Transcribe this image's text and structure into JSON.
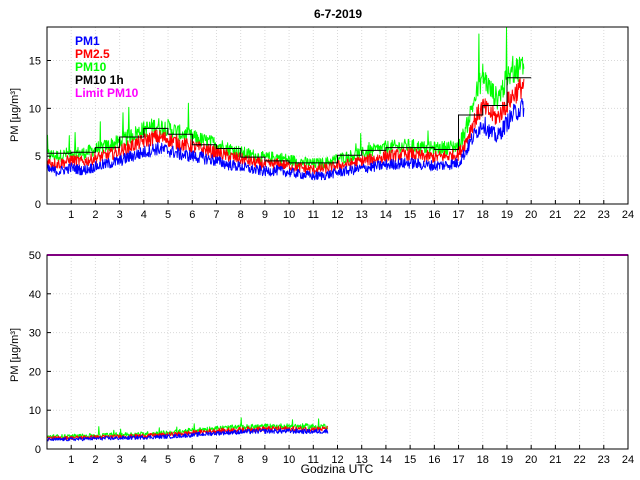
{
  "chart_data": [
    {
      "type": "line",
      "title": "6-7-2019",
      "ylabel": "PM [µg/m³]",
      "xlabel": "",
      "xlim": [
        0,
        24
      ],
      "ylim": [
        0,
        18.5
      ],
      "x_ticks": [
        "1",
        "2",
        "3",
        "4",
        "5",
        "6",
        "7",
        "8",
        "9",
        "10",
        "11",
        "12",
        "13",
        "14",
        "15",
        "16",
        "17",
        "18",
        "19",
        "20",
        "21",
        "22",
        "23",
        "24"
      ],
      "y_ticks": [
        "0",
        "5",
        "10",
        "15"
      ],
      "grid": true,
      "legend_position": "top-left",
      "series": [
        {
          "name": "PM1",
          "color": "#0000ff",
          "x": [
            0,
            0.5,
            1,
            1.5,
            2,
            2.5,
            3,
            3.5,
            4,
            4.5,
            5,
            5.5,
            6,
            6.5,
            7,
            7.5,
            8,
            8.5,
            9,
            9.5,
            10,
            10.5,
            11,
            11.5,
            12,
            12.5,
            13,
            13.5,
            14,
            14.5,
            15,
            15.5,
            16,
            16.5,
            17,
            17.3,
            17.6,
            18,
            18.3,
            18.6,
            19,
            19.3,
            19.7
          ],
          "y": [
            3.6,
            3.4,
            3.8,
            3.5,
            3.9,
            4.2,
            4.5,
            5.0,
            5.4,
            5.8,
            5.6,
            5.2,
            5.0,
            4.8,
            4.5,
            4.1,
            3.9,
            3.6,
            3.4,
            3.5,
            3.3,
            3.1,
            2.9,
            3.0,
            3.3,
            3.5,
            3.7,
            3.9,
            4.1,
            4.2,
            4.3,
            4.1,
            4.0,
            4.1,
            4.3,
            5.5,
            7.0,
            8.5,
            7.5,
            7.0,
            8.5,
            9.5,
            10.2
          ]
        },
        {
          "name": "PM2.5",
          "color": "#ff0000",
          "x": [
            0,
            0.5,
            1,
            1.5,
            2,
            2.5,
            3,
            3.5,
            4,
            4.5,
            5,
            5.5,
            6,
            6.5,
            7,
            7.5,
            8,
            8.5,
            9,
            9.5,
            10,
            10.5,
            11,
            11.5,
            12,
            12.5,
            13,
            13.5,
            14,
            14.5,
            15,
            15.5,
            16,
            16.5,
            17,
            17.3,
            17.6,
            18,
            18.3,
            18.6,
            19,
            19.3,
            19.7
          ],
          "y": [
            4.4,
            4.2,
            4.6,
            4.4,
            4.8,
            5.1,
            5.5,
            6.1,
            6.6,
            7.0,
            6.8,
            6.3,
            6.0,
            5.7,
            5.4,
            5.0,
            4.7,
            4.4,
            4.1,
            4.2,
            4.0,
            3.8,
            3.6,
            3.7,
            4.0,
            4.2,
            4.5,
            4.7,
            5.0,
            5.1,
            5.2,
            5.0,
            4.9,
            5.0,
            5.2,
            6.5,
            8.5,
            10.2,
            9.5,
            9.0,
            10.5,
            11.5,
            12.5
          ]
        },
        {
          "name": "PM10",
          "color": "#00ff00",
          "x": [
            0,
            0.5,
            1,
            1.5,
            2,
            2.5,
            3,
            3.5,
            4,
            4.5,
            5,
            5.5,
            6,
            6.5,
            7,
            7.5,
            8,
            8.5,
            9,
            9.5,
            10,
            10.5,
            11,
            11.5,
            12,
            12.5,
            13,
            13.5,
            14,
            14.5,
            15,
            15.5,
            16,
            16.5,
            17,
            17.3,
            17.6,
            18,
            18.3,
            18.6,
            19,
            19.3,
            19.7
          ],
          "y": [
            5.2,
            5.0,
            5.4,
            5.3,
            5.7,
            6.1,
            6.5,
            7.2,
            7.8,
            8.2,
            8.0,
            7.4,
            7.0,
            6.6,
            6.3,
            5.8,
            5.4,
            5.1,
            4.8,
            4.9,
            4.6,
            4.4,
            4.2,
            4.3,
            4.7,
            5.0,
            5.3,
            5.6,
            5.9,
            6.0,
            6.1,
            5.9,
            5.8,
            5.9,
            6.1,
            7.8,
            10.5,
            13.5,
            12.0,
            11.0,
            13.0,
            14.0,
            14.5
          ]
        },
        {
          "name": "PM10 1h",
          "color": "#000000",
          "step": true,
          "x": [
            0,
            1,
            2,
            3,
            4,
            5,
            6,
            7,
            8,
            9,
            10,
            11,
            12,
            13,
            14,
            15,
            16,
            17,
            18,
            19,
            20
          ],
          "y": [
            5.3,
            5.4,
            5.9,
            7.0,
            7.9,
            7.3,
            6.2,
            5.8,
            4.9,
            4.5,
            4.3,
            4.3,
            5.1,
            5.6,
            5.9,
            5.9,
            5.7,
            9.3,
            10.3,
            13.2,
            13.2
          ]
        },
        {
          "name": "Limit PM10",
          "color": "#ff00ff"
        }
      ]
    },
    {
      "type": "line",
      "title": "",
      "ylabel": "PM [µg/m³]",
      "xlabel": "Godzina UTC",
      "xlim": [
        0,
        24
      ],
      "ylim": [
        0,
        50
      ],
      "x_ticks": [
        "1",
        "2",
        "3",
        "4",
        "5",
        "6",
        "7",
        "8",
        "9",
        "10",
        "11",
        "12",
        "13",
        "14",
        "15",
        "16",
        "17",
        "18",
        "19",
        "20",
        "21",
        "22",
        "23",
        "24"
      ],
      "y_ticks": [
        "0",
        "10",
        "20",
        "30",
        "40",
        "50"
      ],
      "grid": true,
      "limit_line": {
        "name": "Limit PM10",
        "value": 50,
        "color": "#ff00ff"
      },
      "series": [
        {
          "name": "PM1",
          "color": "#0000ff",
          "x": [
            0,
            1,
            2,
            3,
            4,
            5,
            6,
            7,
            8,
            9,
            10,
            11,
            11.6
          ],
          "y": [
            2.4,
            2.5,
            2.7,
            2.8,
            3.0,
            3.2,
            3.6,
            4.1,
            4.4,
            4.6,
            4.6,
            4.5,
            4.6
          ]
        },
        {
          "name": "PM2.5",
          "color": "#ff0000",
          "x": [
            0,
            1,
            2,
            3,
            4,
            5,
            6,
            7,
            8,
            9,
            10,
            11,
            11.6
          ],
          "y": [
            2.8,
            2.9,
            3.1,
            3.2,
            3.4,
            3.7,
            4.2,
            4.7,
            5.0,
            5.2,
            5.2,
            5.1,
            5.2
          ]
        },
        {
          "name": "PM10",
          "color": "#00ff00",
          "x": [
            0,
            1,
            2,
            3,
            4,
            5,
            6,
            7,
            8,
            9,
            10,
            11,
            11.6
          ],
          "y": [
            3.2,
            3.3,
            3.5,
            3.7,
            3.9,
            4.2,
            4.8,
            5.3,
            5.6,
            5.8,
            5.9,
            5.8,
            5.9
          ]
        }
      ]
    }
  ]
}
